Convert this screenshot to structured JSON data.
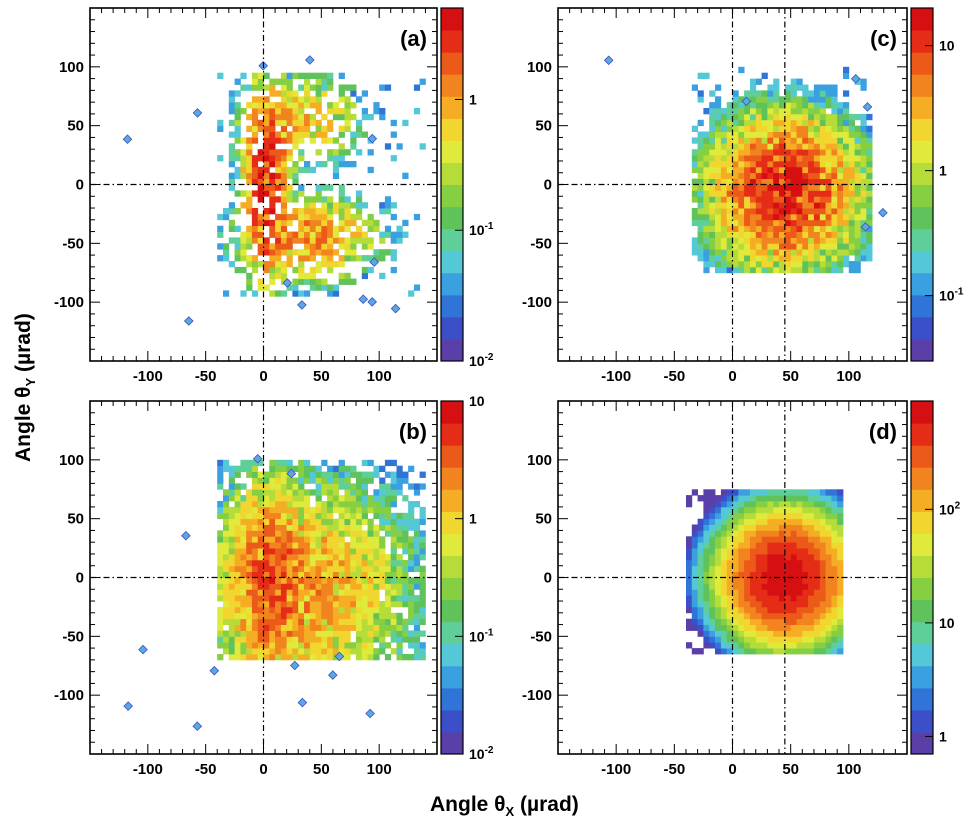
{
  "figure": {
    "xlabel": "Angle θ",
    "xlabel_sub": "X",
    "xlabel_unit": " (µrad)",
    "ylabel": "Angle θ",
    "ylabel_sub": "Y",
    "ylabel_unit": " (µrad)"
  },
  "colormap": [
    "#5b3fa8",
    "#3b50c8",
    "#2f74d6",
    "#3aa0e0",
    "#55c8d8",
    "#5fcf9a",
    "#5fc25a",
    "#86cf42",
    "#b6dc3a",
    "#e0ea3a",
    "#f2d630",
    "#f5ad24",
    "#f1841e",
    "#ec5a1a",
    "#e52c16",
    "#d61012"
  ],
  "chart_data": [
    {
      "type": "heatmap",
      "panel": "a",
      "label": "(a)",
      "xlim": [
        -150,
        150
      ],
      "ylim": [
        -150,
        150
      ],
      "xticks": [
        -100,
        -50,
        0,
        50,
        100
      ],
      "yticks": [
        -100,
        -50,
        0,
        50,
        100
      ],
      "x_ticklabels": [
        "-100",
        "-50",
        "0",
        "50",
        "100"
      ],
      "y_ticklabels": [
        "-100",
        "-50",
        "0",
        "50",
        "100"
      ],
      "show_xticklabels": true,
      "show_yticklabels": true,
      "vlines": [
        0
      ],
      "hlines": [
        0
      ],
      "colorbar": {
        "scale": "log",
        "range": [
          0.01,
          5
        ],
        "labels": [
          {
            "value": 1,
            "base": "1",
            "exp": ""
          },
          {
            "value": 0.1,
            "base": "10",
            "exp": "-1"
          },
          {
            "value": 0.01,
            "base": "10",
            "exp": "-2"
          }
        ]
      },
      "pattern": "sparse-channeling",
      "blobs": [
        {
          "x": 2,
          "y": 5,
          "sx": 10,
          "sy": 40,
          "amp": 3.0
        },
        {
          "x": 40,
          "y": -45,
          "sx": 30,
          "sy": 18,
          "amp": 1.2
        },
        {
          "x": 35,
          "y": 55,
          "sx": 25,
          "sy": 18,
          "amp": 0.8
        }
      ],
      "density": 0.55,
      "extent": [
        -40,
        140,
        -95,
        95
      ]
    },
    {
      "type": "heatmap",
      "panel": "b",
      "label": "(b)",
      "xlim": [
        -150,
        150
      ],
      "ylim": [
        -150,
        150
      ],
      "xticks": [
        -100,
        -50,
        0,
        50,
        100
      ],
      "yticks": [
        -100,
        -50,
        0,
        50,
        100
      ],
      "x_ticklabels": [
        "-100",
        "-50",
        "0",
        "50",
        "100"
      ],
      "y_ticklabels": [
        "-100",
        "-50",
        "0",
        "50",
        "100"
      ],
      "show_xticklabels": true,
      "show_yticklabels": true,
      "vlines": [
        0
      ],
      "hlines": [
        0
      ],
      "colorbar": {
        "scale": "log",
        "range": [
          0.01,
          10
        ],
        "labels": [
          {
            "value": 10,
            "base": "10",
            "exp": ""
          },
          {
            "value": 1,
            "base": "1",
            "exp": ""
          },
          {
            "value": 0.1,
            "base": "10",
            "exp": "-1"
          },
          {
            "value": 0.01,
            "base": "10",
            "exp": "-2"
          }
        ]
      },
      "pattern": "dense-cloud",
      "blobs": [
        {
          "x": 5,
          "y": 0,
          "sx": 15,
          "sy": 40,
          "amp": 2.5
        },
        {
          "x": 35,
          "y": -10,
          "sx": 45,
          "sy": 45,
          "amp": 1.6
        }
      ],
      "density": 0.8,
      "extent": [
        -40,
        140,
        -70,
        100
      ]
    },
    {
      "type": "heatmap",
      "panel": "c",
      "label": "(c)",
      "xlim": [
        -150,
        150
      ],
      "ylim": [
        -150,
        150
      ],
      "xticks": [
        -100,
        -50,
        0,
        50,
        100
      ],
      "yticks": [
        -100,
        -50,
        0,
        50,
        100
      ],
      "x_ticklabels": [
        "-100",
        "-50",
        "0",
        "50",
        "100"
      ],
      "y_ticklabels": [
        "-100",
        "-50",
        "0",
        "50",
        "100"
      ],
      "show_xticklabels": true,
      "show_yticklabels": true,
      "vlines": [
        0,
        45
      ],
      "hlines": [
        0
      ],
      "colorbar": {
        "scale": "log",
        "range": [
          0.03,
          20
        ],
        "labels": [
          {
            "value": 10,
            "base": "10",
            "exp": ""
          },
          {
            "value": 1,
            "base": "1",
            "exp": ""
          },
          {
            "value": 0.1,
            "base": "10",
            "exp": "-1"
          }
        ]
      },
      "pattern": "round-cloud",
      "blobs": [
        {
          "x": 45,
          "y": -5,
          "sx": 30,
          "sy": 30,
          "amp": 12.0
        }
      ],
      "density": 0.85,
      "extent": [
        -35,
        120,
        -75,
        100
      ]
    },
    {
      "type": "heatmap",
      "panel": "d",
      "label": "(d)",
      "xlim": [
        -150,
        150
      ],
      "ylim": [
        -150,
        150
      ],
      "xticks": [
        -100,
        -50,
        0,
        50,
        100
      ],
      "yticks": [
        -100,
        -50,
        0,
        50,
        100
      ],
      "x_ticklabels": [
        "-100",
        "-50",
        "0",
        "50",
        "100"
      ],
      "y_ticklabels": [
        "-100",
        "-50",
        "0",
        "50",
        "100"
      ],
      "show_xticklabels": true,
      "show_yticklabels": true,
      "vlines": [
        0,
        45
      ],
      "hlines": [
        0
      ],
      "colorbar": {
        "scale": "log",
        "range": [
          0.7,
          900
        ],
        "labels": [
          {
            "value": 100,
            "base": "10",
            "exp": "2"
          },
          {
            "value": 10,
            "base": "10",
            "exp": ""
          },
          {
            "value": 1,
            "base": "1",
            "exp": ""
          }
        ]
      },
      "pattern": "smooth-gaussian",
      "blobs": [
        {
          "x": 45,
          "y": 0,
          "sx": 24,
          "sy": 24,
          "amp": 800
        }
      ],
      "density": 1.0,
      "extent": [
        -40,
        95,
        -65,
        75
      ]
    }
  ]
}
